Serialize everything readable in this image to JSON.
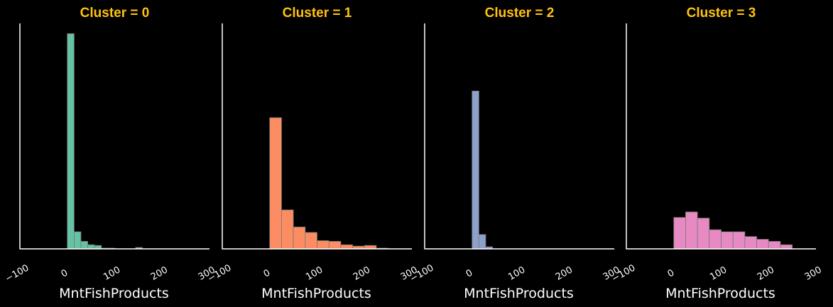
{
  "chart_data": [
    {
      "type": "histogram",
      "title": "Cluster = 0",
      "xlabel": "MntFishProducts",
      "ylabel": "",
      "color": "#66c2a5",
      "xlim": [
        -100,
        300
      ],
      "x_ticks": [
        "−100",
        "0",
        "100",
        "200",
        "300"
      ],
      "bin_edges": [
        0,
        14.4,
        28.8,
        43.2,
        57.6,
        72.0,
        86.4,
        100.8,
        115.2,
        129.6,
        144.0,
        158.4,
        172.8
      ],
      "counts": [
        315,
        25,
        11,
        6,
        5,
        1,
        1,
        0,
        0,
        0,
        2,
        0
      ]
    },
    {
      "type": "histogram",
      "title": "Cluster = 1",
      "xlabel": "MntFishProducts",
      "ylabel": "",
      "color": "#fc8d62",
      "xlim": [
        -100,
        300
      ],
      "x_ticks": [
        "−100",
        "0",
        "100",
        "200",
        "300"
      ],
      "bin_edges": [
        0,
        25.0,
        50.0,
        75.0,
        100.0,
        125.0,
        150.0,
        175.0,
        200.0,
        225.0,
        250.0
      ],
      "counts": [
        192,
        57,
        32,
        24,
        12,
        11,
        6,
        4,
        5,
        1
      ]
    },
    {
      "type": "histogram",
      "title": "Cluster = 2",
      "xlabel": "MntFishProducts",
      "ylabel": "",
      "color": "#8da0cb",
      "xlim": [
        -100,
        300
      ],
      "x_ticks": [
        "−100",
        "0",
        "100",
        "200",
        "300"
      ],
      "bin_edges": [
        0,
        14.4,
        28.8,
        43.2
      ],
      "counts": [
        231,
        21,
        3
      ]
    },
    {
      "type": "histogram",
      "title": "Cluster = 3",
      "xlabel": "MntFishProducts",
      "ylabel": "",
      "color": "#e78ac3",
      "xlim": [
        -100,
        300
      ],
      "x_ticks": [
        "−100",
        "0",
        "100",
        "200",
        "300"
      ],
      "bin_edges": [
        0,
        25.0,
        50.0,
        75.0,
        100.0,
        125.0,
        150.0,
        175.0,
        200.0,
        225.0,
        250.0
      ],
      "counts": [
        46,
        54,
        45,
        28,
        25,
        25,
        18,
        14,
        11,
        6
      ]
    }
  ]
}
